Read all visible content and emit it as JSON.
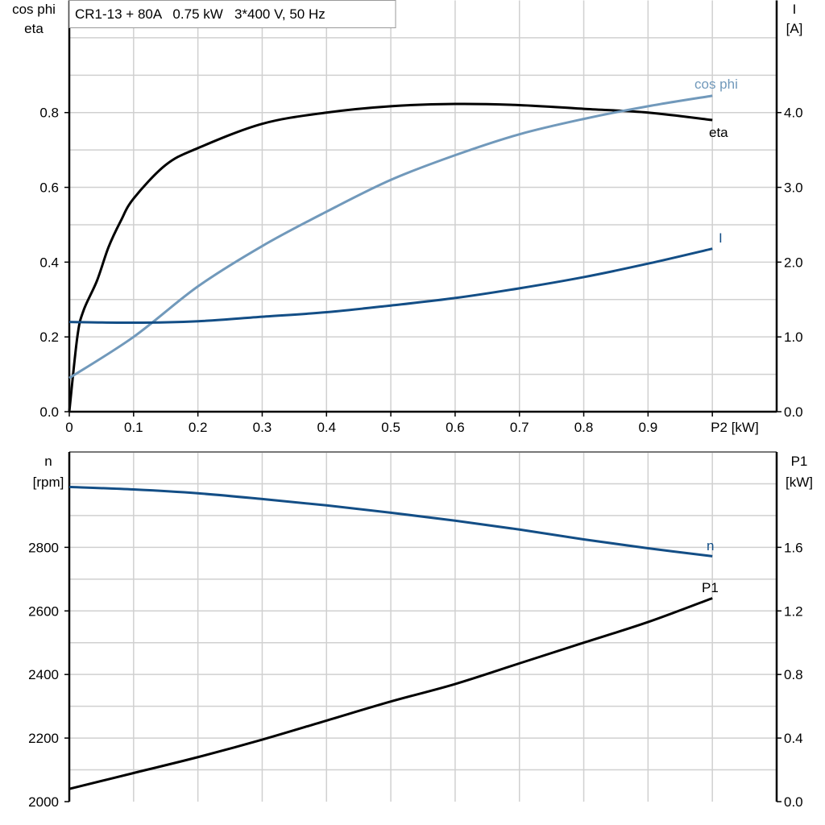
{
  "title": "CR1-13 + 80A   0.75 kW   3*400 V, 50 Hz",
  "colors": {
    "eta": "#000000",
    "cos_phi": "#7199bb",
    "I": "#134e86",
    "n": "#134e86",
    "P1": "#000000",
    "grid": "#d0d0d0"
  },
  "chart_data": [
    {
      "type": "line",
      "xlabel": "P2 [kW]",
      "x_ticks": [
        "0",
        "0.1",
        "0.2",
        "0.3",
        "0.4",
        "0.5",
        "0.6",
        "0.7",
        "0.8",
        "0.9"
      ],
      "xlim": [
        0,
        1.1
      ],
      "ylabel_left": [
        "cos phi",
        "eta"
      ],
      "ylim_left": [
        0,
        1.1
      ],
      "y_ticks_left": [
        "0.0",
        "0.2",
        "0.4",
        "0.6",
        "0.8"
      ],
      "ylabel_right": [
        "I",
        "[A]"
      ],
      "ylim_right": [
        0,
        5.5
      ],
      "y_ticks_right": [
        "0.0",
        "1.0",
        "2.0",
        "3.0",
        "4.0"
      ],
      "grid": true,
      "series": [
        {
          "name": "eta",
          "axis": "left",
          "x": [
            0,
            0.0125,
            0.022,
            0.043,
            0.061,
            0.08,
            0.1,
            0.15,
            0.2,
            0.3,
            0.4,
            0.5,
            0.6,
            0.7,
            0.8,
            0.9,
            1.0
          ],
          "y": [
            0,
            0.2,
            0.27,
            0.35,
            0.44,
            0.51,
            0.57,
            0.66,
            0.705,
            0.77,
            0.8,
            0.817,
            0.823,
            0.82,
            0.81,
            0.8,
            0.78
          ]
        },
        {
          "name": "cos phi",
          "axis": "left",
          "x": [
            0,
            0.1,
            0.2,
            0.3,
            0.4,
            0.5,
            0.6,
            0.7,
            0.8,
            0.9,
            1.0
          ],
          "y": [
            0.09,
            0.2,
            0.335,
            0.443,
            0.535,
            0.62,
            0.686,
            0.742,
            0.783,
            0.817,
            0.845
          ]
        },
        {
          "name": "I",
          "axis": "right",
          "x": [
            0,
            0.1,
            0.2,
            0.3,
            0.4,
            0.5,
            0.6,
            0.7,
            0.8,
            0.9,
            1.0
          ],
          "y": [
            1.2,
            1.19,
            1.21,
            1.27,
            1.33,
            1.42,
            1.52,
            1.65,
            1.8,
            1.98,
            2.18
          ]
        }
      ]
    },
    {
      "type": "line",
      "xlim": [
        0,
        1.1
      ],
      "ylabel_left": [
        "n",
        "[rpm]"
      ],
      "ylim_left": [
        2000,
        3100
      ],
      "y_ticks_left": [
        "2000",
        "2200",
        "2400",
        "2600",
        "2800"
      ],
      "ylabel_right": [
        "P1",
        "[kW]"
      ],
      "ylim_right": [
        0,
        2.2
      ],
      "y_ticks_right": [
        "0.0",
        "0.4",
        "0.8",
        "1.2",
        "1.6"
      ],
      "grid": true,
      "series": [
        {
          "name": "n",
          "axis": "left",
          "x": [
            0,
            0.1,
            0.2,
            0.3,
            0.4,
            0.5,
            0.6,
            0.7,
            0.8,
            0.9,
            1.0
          ],
          "y": [
            2990,
            2982,
            2970,
            2952,
            2932,
            2909,
            2884,
            2856,
            2825,
            2797,
            2772
          ]
        },
        {
          "name": "P1",
          "axis": "right",
          "x": [
            0,
            0.1,
            0.2,
            0.3,
            0.4,
            0.5,
            0.6,
            0.7,
            0.8,
            0.9,
            1.0
          ],
          "y": [
            0.08,
            0.18,
            0.28,
            0.39,
            0.51,
            0.63,
            0.74,
            0.87,
            1.0,
            1.13,
            1.28
          ]
        }
      ]
    }
  ]
}
